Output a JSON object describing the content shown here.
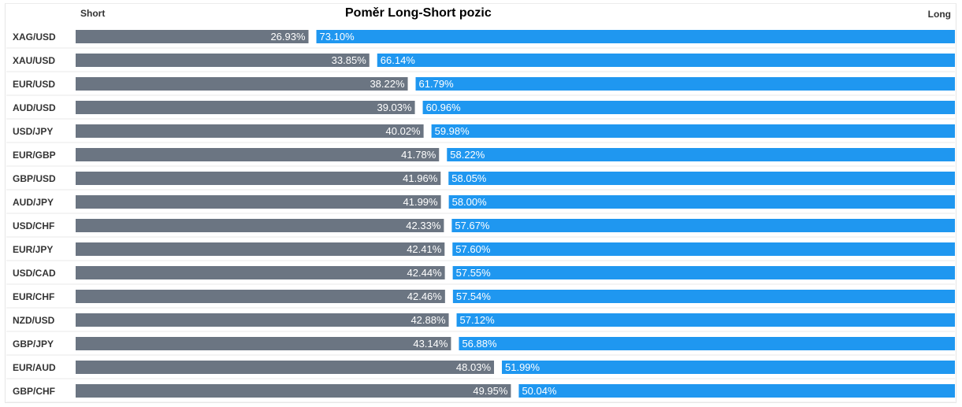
{
  "colors": {
    "short": "#6b7582",
    "long": "#1f97f0",
    "separator": "#e8e8e8",
    "row_text": "#333333"
  },
  "header": {
    "short_label": "Short",
    "long_label": "Long",
    "title": "Poměr Long-Short pozic"
  },
  "chart_data": {
    "type": "bar",
    "orientation": "horizontal",
    "stacked": true,
    "title": "Poměr Long-Short pozic",
    "categories": [
      "XAG/USD",
      "XAU/USD",
      "EUR/USD",
      "AUD/USD",
      "USD/JPY",
      "EUR/GBP",
      "GBP/USD",
      "AUD/JPY",
      "USD/CHF",
      "EUR/JPY",
      "USD/CAD",
      "EUR/CHF",
      "NZD/USD",
      "GBP/JPY",
      "EUR/AUD",
      "GBP/CHF"
    ],
    "series": [
      {
        "name": "Short",
        "values": [
          26.93,
          33.85,
          38.22,
          39.03,
          40.02,
          41.78,
          41.96,
          41.99,
          42.33,
          42.41,
          42.44,
          42.46,
          42.88,
          43.14,
          48.03,
          49.95
        ],
        "labels": [
          "26.93%",
          "33.85%",
          "38.22%",
          "39.03%",
          "40.02%",
          "41.78%",
          "41.96%",
          "41.99%",
          "42.33%",
          "42.41%",
          "42.44%",
          "42.46%",
          "42.88%",
          "43.14%",
          "48.03%",
          "49.95%"
        ]
      },
      {
        "name": "Long",
        "values": [
          73.1,
          66.14,
          61.79,
          60.96,
          59.98,
          58.22,
          58.05,
          58.0,
          57.67,
          57.6,
          57.55,
          57.54,
          57.12,
          56.88,
          51.99,
          50.04
        ],
        "labels": [
          "73.10%",
          "66.14%",
          "61.79%",
          "60.96%",
          "59.98%",
          "58.22%",
          "58.05%",
          "58.00%",
          "57.67%",
          "57.60%",
          "57.55%",
          "57.54%",
          "57.12%",
          "56.88%",
          "51.99%",
          "50.04%"
        ]
      }
    ],
    "xlim": [
      0,
      100
    ],
    "grid": false,
    "legend": "top"
  }
}
